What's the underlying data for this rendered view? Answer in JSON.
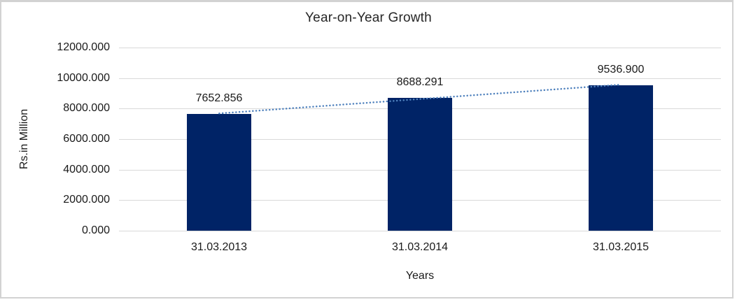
{
  "chart_data": {
    "type": "bar",
    "title": "Year-on-Year Growth",
    "xlabel": "Years",
    "ylabel": "Rs.in Million",
    "categories": [
      "31.03.2013",
      "31.03.2014",
      "31.03.2015"
    ],
    "values": [
      7652.856,
      8688.291,
      9536.9
    ],
    "data_labels": [
      "7652.856",
      "8688.291",
      "9536.900"
    ],
    "ylim": [
      0,
      12000
    ],
    "ytick_step": 2000,
    "ytick_labels": [
      "0.000",
      "2000.000",
      "4000.000",
      "6000.000",
      "8000.000",
      "10000.000",
      "12000.000"
    ],
    "grid": true,
    "legend": "none",
    "trendline": {
      "type": "linear",
      "style": "dotted"
    },
    "colors": {
      "bar": "#002366",
      "trendline": "#4F81BD",
      "gridline": "#D9D9D9",
      "axis_line": "#D9D9D9",
      "text": "#1a1a1a",
      "border": "#D2D2D2",
      "background": "#FFFFFF"
    }
  }
}
